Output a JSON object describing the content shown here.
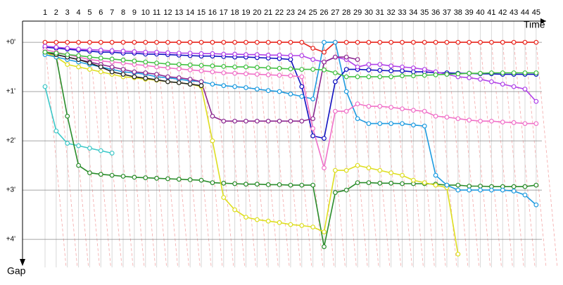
{
  "chart_data": {
    "type": "line",
    "x_label": "Time",
    "y_label": "Gap",
    "categories": [
      "1",
      "2",
      "3",
      "4",
      "5",
      "6",
      "7",
      "8",
      "9",
      "10",
      "11",
      "12",
      "13",
      "14",
      "15",
      "16",
      "17",
      "18",
      "19",
      "20",
      "21",
      "22",
      "23",
      "24",
      "25",
      "26",
      "27",
      "28",
      "29",
      "30",
      "31",
      "32",
      "33",
      "34",
      "35",
      "36",
      "37",
      "38",
      "39",
      "40",
      "41",
      "42",
      "43",
      "44",
      "45"
    ],
    "ylim": [
      -0.43,
      4.57
    ],
    "yticks": [
      {
        "value": 0,
        "label": "+0'"
      },
      {
        "value": 1,
        "label": "+1'"
      },
      {
        "value": 2,
        "label": "+2'"
      },
      {
        "value": 3,
        "label": "+3'"
      },
      {
        "value": 4,
        "label": "+4'"
      }
    ],
    "grid": true,
    "series": [
      {
        "color": "#e8241c",
        "values": [
          0,
          0,
          0,
          0,
          0,
          0,
          0,
          0,
          0,
          0,
          0,
          0,
          0,
          0,
          0,
          0,
          0,
          0,
          0,
          0,
          0,
          0,
          0,
          0,
          0.12,
          0.2,
          0,
          0,
          0,
          0,
          0,
          0,
          0,
          0,
          0,
          0,
          0,
          0,
          0,
          0,
          0,
          0,
          0,
          0,
          0
        ]
      },
      {
        "color": "#3cc8c8",
        "values": [
          0.9,
          1.8,
          2.05,
          2.1,
          2.15,
          2.2,
          2.25,
          null,
          null,
          null,
          null,
          null,
          null,
          null,
          null,
          null,
          null,
          null,
          null,
          null,
          null,
          null,
          null,
          null,
          null,
          null,
          null,
          null,
          null,
          null,
          null,
          null,
          null,
          null,
          null,
          null,
          null,
          null,
          null,
          null,
          null,
          null,
          null,
          null,
          null
        ]
      },
      {
        "color": "#2a8c2a",
        "values": [
          0.2,
          0.3,
          1.5,
          2.5,
          2.65,
          2.68,
          2.7,
          2.72,
          2.74,
          2.75,
          2.76,
          2.77,
          2.78,
          2.79,
          2.8,
          2.85,
          2.86,
          2.87,
          2.88,
          2.88,
          2.89,
          2.89,
          2.9,
          2.9,
          2.9,
          4.15,
          3.05,
          3.0,
          2.85,
          2.85,
          2.86,
          2.86,
          2.87,
          2.87,
          2.87,
          2.88,
          2.9,
          2.9,
          2.92,
          2.92,
          2.93,
          2.93,
          2.93,
          2.93,
          2.9
        ]
      },
      {
        "color": "#dede20",
        "values": [
          0.2,
          0.3,
          0.45,
          0.5,
          0.55,
          0.6,
          0.65,
          0.7,
          0.72,
          0.75,
          0.77,
          0.8,
          0.82,
          0.85,
          0.9,
          2.0,
          3.15,
          3.4,
          3.55,
          3.6,
          3.63,
          3.66,
          3.7,
          3.72,
          3.75,
          3.85,
          2.6,
          2.6,
          2.5,
          2.55,
          2.6,
          2.65,
          2.7,
          2.8,
          2.85,
          2.9,
          2.95,
          4.3,
          null,
          null,
          null,
          null,
          null,
          null,
          null
        ]
      },
      {
        "color": "#1e9be0",
        "values": [
          0.25,
          0.3,
          0.35,
          0.4,
          0.45,
          0.5,
          0.55,
          0.6,
          0.62,
          0.65,
          0.7,
          0.72,
          0.75,
          0.78,
          0.8,
          0.85,
          0.88,
          0.9,
          0.92,
          0.95,
          0.98,
          1.0,
          1.05,
          1.1,
          1.15,
          0,
          0,
          1.0,
          1.55,
          1.65,
          1.65,
          1.65,
          1.65,
          1.68,
          1.7,
          2.7,
          2.9,
          3.0,
          3.0,
          3.0,
          3.0,
          3.0,
          3.02,
          3.1,
          3.3
        ]
      },
      {
        "color": "#1010c0",
        "values": [
          0.1,
          0.12,
          0.14,
          0.16,
          0.18,
          0.2,
          0.2,
          0.22,
          0.22,
          0.24,
          0.24,
          0.25,
          0.26,
          0.27,
          0.28,
          0.28,
          0.29,
          0.3,
          0.3,
          0.31,
          0.32,
          0.33,
          0.35,
          0.9,
          1.9,
          1.95,
          0.8,
          0.55,
          0.55,
          0.56,
          0.57,
          0.58,
          0.58,
          0.6,
          0.6,
          0.62,
          0.62,
          0.63,
          0.63,
          0.64,
          0.64,
          0.65,
          0.65,
          0.65,
          0.65
        ]
      },
      {
        "color": "#b040e8",
        "values": [
          0.08,
          0.1,
          0.12,
          0.14,
          0.15,
          0.16,
          0.17,
          0.18,
          0.19,
          0.2,
          0.2,
          0.21,
          0.22,
          0.22,
          0.23,
          0.23,
          0.24,
          0.24,
          0.25,
          0.25,
          0.26,
          0.26,
          0.27,
          0.27,
          0.35,
          0.4,
          0.3,
          0.35,
          0.5,
          0.45,
          0.45,
          0.48,
          0.5,
          0.52,
          0.55,
          0.6,
          0.65,
          0.7,
          0.72,
          0.75,
          0.8,
          0.85,
          0.9,
          0.95,
          1.2
        ]
      },
      {
        "color": "#f070c8",
        "values": [
          0.15,
          0.2,
          0.25,
          0.3,
          0.35,
          0.38,
          0.4,
          0.42,
          0.45,
          0.47,
          0.5,
          0.52,
          0.54,
          0.56,
          0.58,
          0.6,
          0.62,
          0.63,
          0.64,
          0.65,
          0.66,
          0.67,
          0.68,
          0.7,
          1.75,
          2.55,
          1.4,
          1.4,
          1.25,
          1.3,
          1.3,
          1.32,
          1.35,
          1.38,
          1.4,
          1.5,
          1.52,
          1.55,
          1.58,
          1.6,
          1.6,
          1.62,
          1.63,
          1.65,
          1.65
        ]
      },
      {
        "color": "#8c2890",
        "values": [
          0.2,
          0.25,
          0.3,
          0.35,
          0.4,
          0.45,
          0.5,
          0.55,
          0.6,
          0.62,
          0.65,
          0.7,
          0.72,
          0.75,
          0.8,
          1.5,
          1.6,
          1.6,
          1.6,
          1.6,
          1.6,
          1.6,
          1.6,
          1.6,
          1.55,
          0.4,
          0.3,
          0.3,
          0.35,
          null,
          null,
          null,
          null,
          null,
          null,
          null,
          null,
          null,
          null,
          null,
          null,
          null,
          null,
          null,
          null
        ]
      },
      {
        "color": "#202020",
        "values": [
          0.2,
          0.25,
          0.3,
          0.35,
          0.42,
          0.5,
          0.6,
          0.65,
          0.7,
          0.73,
          0.76,
          0.8,
          0.82,
          0.85,
          0.88,
          null,
          null,
          null,
          null,
          null,
          null,
          null,
          null,
          null,
          null,
          null,
          null,
          null,
          null,
          null,
          null,
          null,
          null,
          null,
          null,
          null,
          null,
          null,
          null,
          null,
          null,
          null,
          null,
          null,
          null
        ]
      },
      {
        "color": "#40c040",
        "values": [
          0.2,
          0.22,
          0.25,
          0.27,
          0.3,
          0.32,
          0.34,
          0.36,
          0.38,
          0.4,
          0.42,
          0.44,
          0.45,
          0.46,
          0.47,
          0.48,
          0.49,
          0.5,
          0.5,
          0.51,
          0.52,
          0.53,
          0.54,
          0.55,
          0.55,
          0.56,
          0.62,
          0.7,
          0.7,
          0.7,
          0.7,
          0.7,
          0.68,
          0.68,
          0.67,
          0.66,
          0.65,
          0.64,
          0.63,
          0.63,
          0.62,
          0.62,
          0.62,
          0.62,
          0.62
        ]
      }
    ]
  }
}
